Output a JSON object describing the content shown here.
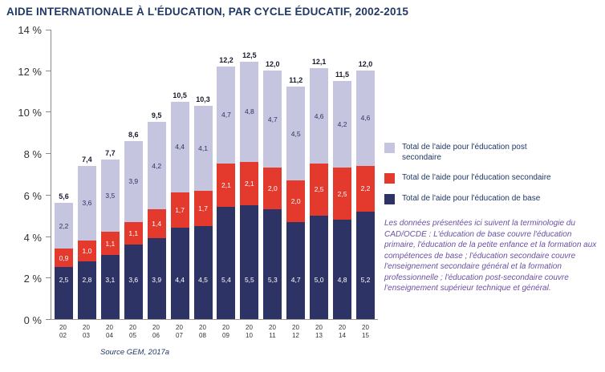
{
  "title": "AIDE INTERNATIONALE À L'ÉDUCATION, PAR CYCLE ÉDUCATIF, 2002-2015",
  "source": "Source GEM, 2017a",
  "note": "Les données présentées ici suivent la terminologie du CAD/OCDE : L'éducation de base couvre l'éducation primaire, l'éducation de la petite enfance et la formation aux compétences de base ; l'éducation secondaire couvre l'enseignement secondaire général et la formation professionnelle ; l'éducation post-secondaire couvre l'enseignement supérieur technique et général.",
  "colors": {
    "title_text": "#1f3864",
    "note_text": "#6b4fa1",
    "axis": "#8a8a8a",
    "base_bar": "#2e3366",
    "secondary_bar": "#e43a2d",
    "post_secondary_bar": "#c5c5df"
  },
  "chart_data": {
    "type": "bar",
    "stacked": true,
    "title": "AIDE INTERNATIONALE À L'ÉDUCATION, PAR CYCLE ÉDUCATIF, 2002-2015",
    "categories": [
      "2002",
      "2003",
      "2004",
      "2005",
      "2006",
      "2007",
      "2008",
      "2009",
      "2010",
      "2011",
      "2012",
      "2013",
      "2014",
      "2015"
    ],
    "series": [
      {
        "key": "base",
        "name": "Total de l'aide pour l'éducation de base",
        "color": "#2e3366",
        "label_color": "#ffffff",
        "values": [
          2.5,
          2.8,
          3.1,
          3.6,
          3.9,
          4.4,
          4.5,
          5.4,
          5.5,
          5.3,
          4.7,
          5.0,
          4.8,
          5.2
        ],
        "labels": [
          "2,5",
          "2,8",
          "3,1",
          "3,6",
          "3,9",
          "4,4",
          "4,5",
          "5,4",
          "5,5",
          "5,3",
          "4,7",
          "5,0",
          "4,8",
          "5,2"
        ]
      },
      {
        "key": "secondaire",
        "name": "Total de l'aide  pour l'éducation secondaire",
        "color": "#e43a2d",
        "label_color": "#ffffff",
        "values": [
          0.9,
          1.0,
          1.1,
          1.1,
          1.4,
          1.7,
          1.7,
          2.1,
          2.1,
          2.0,
          2.0,
          2.5,
          2.5,
          2.2
        ],
        "labels": [
          "0,9",
          "1,0",
          "1,1",
          "1,1",
          "1,4",
          "1,7",
          "1,7",
          "2,1",
          "2,1",
          "2,0",
          "2,0",
          "2,5",
          "2,5",
          "2,2"
        ]
      },
      {
        "key": "post-secondaire",
        "name": "Total de l'aide pour l'éducation post secondaire",
        "color": "#c5c5df",
        "label_color": "#2e3366",
        "values": [
          2.2,
          3.6,
          3.5,
          3.9,
          4.2,
          4.4,
          4.1,
          4.7,
          4.8,
          4.7,
          4.5,
          4.6,
          4.2,
          4.6
        ],
        "labels": [
          "2,2",
          "3,6",
          "3,5",
          "3,9",
          "4,2",
          "4,4",
          "4,1",
          "4,7",
          "4,8",
          "4,7",
          "4,5",
          "4,6",
          "4,2",
          "4,6"
        ]
      }
    ],
    "totals": [
      "5,6",
      "7,4",
      "7,7",
      "8,6",
      "9,5",
      "10,5",
      "10,3",
      "12,2",
      "12,5",
      "12,0",
      "11,2",
      "12,1",
      "11,5",
      "12,0"
    ],
    "y_ticks": [
      {
        "value": 0,
        "label": "0 %"
      },
      {
        "value": 2,
        "label": "2 %"
      },
      {
        "value": 4,
        "label": "4 %"
      },
      {
        "value": 6,
        "label": "6 %"
      },
      {
        "value": 8,
        "label": "8 %"
      },
      {
        "value": 10,
        "label": "10 %"
      },
      {
        "value": 12,
        "label": "12 %"
      },
      {
        "value": 14,
        "label": "14 %"
      }
    ],
    "ylim": [
      0,
      14
    ],
    "xlabel": "",
    "ylabel": "",
    "grid": false,
    "legend_position": "right"
  }
}
